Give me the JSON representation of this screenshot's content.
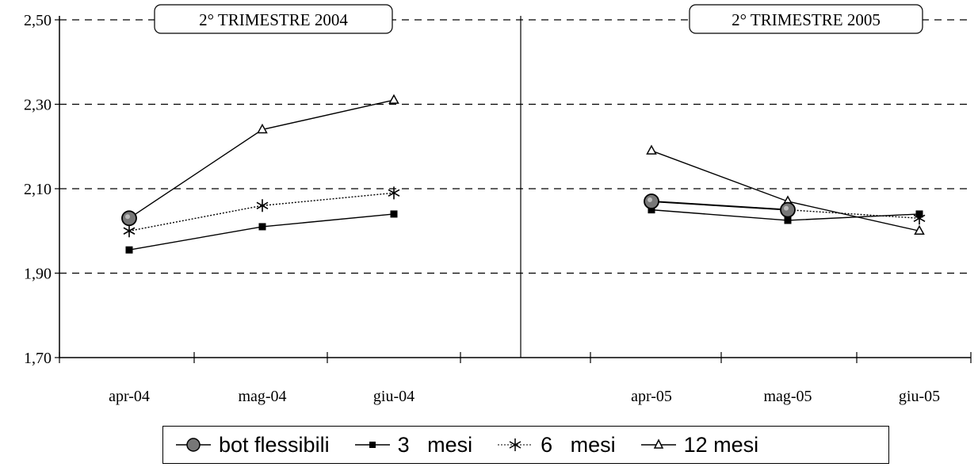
{
  "chart_data": {
    "type": "line",
    "ylim": [
      1.7,
      2.5
    ],
    "yticks": [
      "1,70",
      "1,90",
      "2,10",
      "2,30",
      "2,50"
    ],
    "grid": "dashed-horizontal",
    "legend_position": "bottom",
    "panels": [
      {
        "title": "2° TRIMESTRE 2004",
        "categories": [
          "apr-04",
          "mag-04",
          "giu-04"
        ]
      },
      {
        "title": "2° TRIMESTRE 2005",
        "categories": [
          "apr-05",
          "mag-05",
          "giu-05"
        ]
      }
    ],
    "series": [
      {
        "name": "bot flessibili",
        "marker": "circle",
        "values": [
          [
            2.03,
            null,
            null
          ],
          [
            2.07,
            2.05,
            null
          ]
        ]
      },
      {
        "name": "3   mesi",
        "marker": "square",
        "values": [
          [
            1.955,
            2.01,
            2.04
          ],
          [
            2.05,
            2.025,
            2.04
          ]
        ]
      },
      {
        "name": "6   mesi",
        "marker": "star",
        "values": [
          [
            2.0,
            2.06,
            2.09
          ],
          [
            2.07,
            2.05,
            2.03
          ]
        ]
      },
      {
        "name": "12 mesi",
        "marker": "triangle",
        "values": [
          [
            2.03,
            2.24,
            2.31
          ],
          [
            2.19,
            2.07,
            2.0
          ]
        ]
      }
    ]
  }
}
